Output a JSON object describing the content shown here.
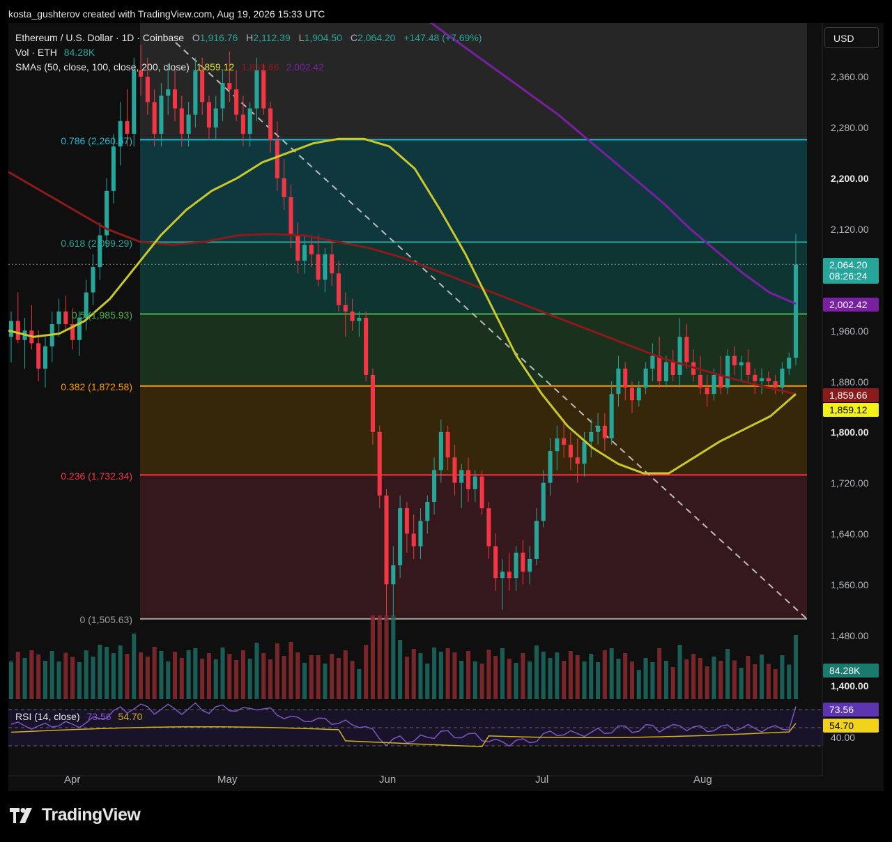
{
  "attribution": "kosta_gushterov created with TradingView.com, Aug 19, 2026 15:33 UTC",
  "brand": "TradingView",
  "currency_button": "USD",
  "legend": {
    "symbol": "Ethereum / U.S. Dollar · 1D · Coinbase",
    "o_label": "O",
    "o_value": "1,916.76",
    "h_label": "H",
    "h_value": "2,112.39",
    "l_label": "L",
    "l_value": "1,904.50",
    "c_label": "C",
    "c_value": "2,064.20",
    "change": "+147.48 (+7.69%)",
    "vol_label": "Vol · ETH",
    "vol_value": "84.28K",
    "sma_label": "SMAs (50, close, 100, close, 200, close)",
    "sma50_value": "1,859.12",
    "sma100_value": "1,859.66",
    "sma200_value": "2,002.42"
  },
  "badges": {
    "last_price": "2,064.20",
    "countdown": "08:26:24",
    "sma200": "2,002.42",
    "sma100": "1,859.66",
    "sma50": "1,859.12",
    "volume": "84.28K",
    "rsi": "73.56",
    "rsi_ma": "54.70"
  },
  "rsi_legend": {
    "label": "RSI (14, close)",
    "rsi": "73.56",
    "ma": "54.70",
    "level": "40.00"
  },
  "price_axis_labels": [
    "2,360.00",
    "2,280.00",
    "2,200.00",
    "2,120.00",
    "1,960.00",
    "1,880.00",
    "1,800.00",
    "1,720.00",
    "1,640.00",
    "1,560.00",
    "1,480.00",
    "1,400.00"
  ],
  "month_labels": [
    "Apr",
    "May",
    "Jun",
    "Jul",
    "Aug"
  ],
  "colors": {
    "up": "#26a69a",
    "down": "#f23645",
    "sma50": "#c9c92a",
    "sma100": "#8b1a1a",
    "sma200": "#7b1fa2",
    "rsi": "#7e57c2",
    "rsi_ma": "#d4b21b"
  },
  "chart_data": {
    "type": "candlestick",
    "symbol": "ETHUSD",
    "timeframe": "1D",
    "price_range": [
      1400,
      2400
    ],
    "fib_levels": [
      {
        "ratio": "0.786",
        "price": 2260.67,
        "label": "0.786 (2,260.67)",
        "color": "#22b8cf"
      },
      {
        "ratio": "0.618",
        "price": 2099.29,
        "label": "0.618 (2,099.29)",
        "color": "#26a69a"
      },
      {
        "ratio": "0.5",
        "price": 1985.93,
        "label": "0.5 (1,985.93)",
        "color": "#4caf50"
      },
      {
        "ratio": "0.382",
        "price": 1872.58,
        "label": "0.382 (1,872.58)",
        "color": "#ff9800"
      },
      {
        "ratio": "0.236",
        "price": 1732.34,
        "label": "0.236 (1,732.34)",
        "color": "#f23645"
      },
      {
        "ratio": "0",
        "price": 1505.63,
        "label": "0 (1,505.63)",
        "color": "#9e9e9e"
      }
    ],
    "candles": [
      {
        "o": 1950,
        "h": 1990,
        "l": 1910,
        "c": 1975
      },
      {
        "o": 1975,
        "h": 2020,
        "l": 1940,
        "c": 1945
      },
      {
        "o": 1945,
        "h": 1980,
        "l": 1900,
        "c": 1960
      },
      {
        "o": 1960,
        "h": 2000,
        "l": 1930,
        "c": 1940
      },
      {
        "o": 1940,
        "h": 1960,
        "l": 1880,
        "c": 1900
      },
      {
        "o": 1900,
        "h": 1950,
        "l": 1870,
        "c": 1935
      },
      {
        "o": 1935,
        "h": 1990,
        "l": 1910,
        "c": 1970
      },
      {
        "o": 1970,
        "h": 2010,
        "l": 1950,
        "c": 1990
      },
      {
        "o": 1990,
        "h": 2015,
        "l": 1960,
        "c": 1970
      },
      {
        "o": 1970,
        "h": 1995,
        "l": 1930,
        "c": 1945
      },
      {
        "o": 1945,
        "h": 1990,
        "l": 1920,
        "c": 1980
      },
      {
        "o": 1980,
        "h": 2040,
        "l": 1960,
        "c": 2020
      },
      {
        "o": 2020,
        "h": 2080,
        "l": 2000,
        "c": 2060
      },
      {
        "o": 2060,
        "h": 2130,
        "l": 2040,
        "c": 2110
      },
      {
        "o": 2110,
        "h": 2200,
        "l": 2090,
        "c": 2180
      },
      {
        "o": 2180,
        "h": 2270,
        "l": 2160,
        "c": 2250
      },
      {
        "o": 2250,
        "h": 2320,
        "l": 2220,
        "c": 2290
      },
      {
        "o": 2290,
        "h": 2340,
        "l": 2250,
        "c": 2270
      },
      {
        "o": 2270,
        "h": 2390,
        "l": 2250,
        "c": 2370
      },
      {
        "o": 2370,
        "h": 2410,
        "l": 2330,
        "c": 2360
      },
      {
        "o": 2360,
        "h": 2390,
        "l": 2300,
        "c": 2320
      },
      {
        "o": 2320,
        "h": 2340,
        "l": 2250,
        "c": 2270
      },
      {
        "o": 2270,
        "h": 2350,
        "l": 2250,
        "c": 2330
      },
      {
        "o": 2330,
        "h": 2380,
        "l": 2300,
        "c": 2340
      },
      {
        "o": 2340,
        "h": 2370,
        "l": 2290,
        "c": 2310
      },
      {
        "o": 2310,
        "h": 2330,
        "l": 2250,
        "c": 2270
      },
      {
        "o": 2270,
        "h": 2320,
        "l": 2250,
        "c": 2300
      },
      {
        "o": 2300,
        "h": 2390,
        "l": 2280,
        "c": 2370
      },
      {
        "o": 2370,
        "h": 2390,
        "l": 2300,
        "c": 2320
      },
      {
        "o": 2320,
        "h": 2330,
        "l": 2260,
        "c": 2280
      },
      {
        "o": 2280,
        "h": 2330,
        "l": 2260,
        "c": 2310
      },
      {
        "o": 2310,
        "h": 2370,
        "l": 2290,
        "c": 2350
      },
      {
        "o": 2350,
        "h": 2400,
        "l": 2320,
        "c": 2340
      },
      {
        "o": 2340,
        "h": 2370,
        "l": 2290,
        "c": 2300
      },
      {
        "o": 2300,
        "h": 2330,
        "l": 2250,
        "c": 2270
      },
      {
        "o": 2270,
        "h": 2320,
        "l": 2250,
        "c": 2310
      },
      {
        "o": 2310,
        "h": 2390,
        "l": 2290,
        "c": 2370
      },
      {
        "o": 2370,
        "h": 2380,
        "l": 2300,
        "c": 2310
      },
      {
        "o": 2310,
        "h": 2320,
        "l": 2240,
        "c": 2260
      },
      {
        "o": 2260,
        "h": 2290,
        "l": 2180,
        "c": 2200
      },
      {
        "o": 2200,
        "h": 2230,
        "l": 2150,
        "c": 2170
      },
      {
        "o": 2170,
        "h": 2190,
        "l": 2090,
        "c": 2110
      },
      {
        "o": 2110,
        "h": 2130,
        "l": 2050,
        "c": 2070
      },
      {
        "o": 2070,
        "h": 2110,
        "l": 2050,
        "c": 2095
      },
      {
        "o": 2095,
        "h": 2110,
        "l": 2060,
        "c": 2080
      },
      {
        "o": 2080,
        "h": 2110,
        "l": 2030,
        "c": 2040
      },
      {
        "o": 2040,
        "h": 2090,
        "l": 2020,
        "c": 2080
      },
      {
        "o": 2080,
        "h": 2100,
        "l": 2030,
        "c": 2050
      },
      {
        "o": 2050,
        "h": 2070,
        "l": 1990,
        "c": 2000
      },
      {
        "o": 2000,
        "h": 2020,
        "l": 1950,
        "c": 1990
      },
      {
        "o": 1990,
        "h": 2010,
        "l": 1960,
        "c": 1975
      },
      {
        "o": 1975,
        "h": 1990,
        "l": 1950,
        "c": 1980
      },
      {
        "o": 1980,
        "h": 1990,
        "l": 1880,
        "c": 1890
      },
      {
        "o": 1890,
        "h": 1900,
        "l": 1780,
        "c": 1800
      },
      {
        "o": 1800,
        "h": 1810,
        "l": 1680,
        "c": 1700
      },
      {
        "o": 1700,
        "h": 1710,
        "l": 1510,
        "c": 1560
      },
      {
        "o": 1560,
        "h": 1620,
        "l": 1510,
        "c": 1590
      },
      {
        "o": 1590,
        "h": 1700,
        "l": 1570,
        "c": 1680
      },
      {
        "o": 1680,
        "h": 1690,
        "l": 1610,
        "c": 1640
      },
      {
        "o": 1640,
        "h": 1670,
        "l": 1600,
        "c": 1620
      },
      {
        "o": 1620,
        "h": 1680,
        "l": 1600,
        "c": 1660
      },
      {
        "o": 1660,
        "h": 1700,
        "l": 1640,
        "c": 1690
      },
      {
        "o": 1690,
        "h": 1760,
        "l": 1670,
        "c": 1740
      },
      {
        "o": 1740,
        "h": 1820,
        "l": 1720,
        "c": 1800
      },
      {
        "o": 1800,
        "h": 1810,
        "l": 1740,
        "c": 1760
      },
      {
        "o": 1760,
        "h": 1780,
        "l": 1700,
        "c": 1720
      },
      {
        "o": 1720,
        "h": 1750,
        "l": 1680,
        "c": 1740
      },
      {
        "o": 1740,
        "h": 1760,
        "l": 1690,
        "c": 1710
      },
      {
        "o": 1710,
        "h": 1740,
        "l": 1690,
        "c": 1730
      },
      {
        "o": 1730,
        "h": 1740,
        "l": 1670,
        "c": 1680
      },
      {
        "o": 1680,
        "h": 1690,
        "l": 1600,
        "c": 1620
      },
      {
        "o": 1620,
        "h": 1640,
        "l": 1550,
        "c": 1570
      },
      {
        "o": 1570,
        "h": 1600,
        "l": 1520,
        "c": 1580
      },
      {
        "o": 1580,
        "h": 1610,
        "l": 1550,
        "c": 1570
      },
      {
        "o": 1570,
        "h": 1620,
        "l": 1550,
        "c": 1610
      },
      {
        "o": 1610,
        "h": 1630,
        "l": 1560,
        "c": 1580
      },
      {
        "o": 1580,
        "h": 1620,
        "l": 1560,
        "c": 1600
      },
      {
        "o": 1600,
        "h": 1680,
        "l": 1590,
        "c": 1660
      },
      {
        "o": 1660,
        "h": 1740,
        "l": 1650,
        "c": 1720
      },
      {
        "o": 1720,
        "h": 1790,
        "l": 1700,
        "c": 1770
      },
      {
        "o": 1770,
        "h": 1810,
        "l": 1740,
        "c": 1790
      },
      {
        "o": 1790,
        "h": 1820,
        "l": 1760,
        "c": 1780
      },
      {
        "o": 1780,
        "h": 1800,
        "l": 1740,
        "c": 1760
      },
      {
        "o": 1760,
        "h": 1790,
        "l": 1720,
        "c": 1750
      },
      {
        "o": 1750,
        "h": 1800,
        "l": 1730,
        "c": 1785
      },
      {
        "o": 1785,
        "h": 1820,
        "l": 1760,
        "c": 1800
      },
      {
        "o": 1800,
        "h": 1830,
        "l": 1780,
        "c": 1810
      },
      {
        "o": 1810,
        "h": 1830,
        "l": 1770,
        "c": 1790
      },
      {
        "o": 1790,
        "h": 1880,
        "l": 1780,
        "c": 1860
      },
      {
        "o": 1860,
        "h": 1920,
        "l": 1840,
        "c": 1900
      },
      {
        "o": 1900,
        "h": 1910,
        "l": 1850,
        "c": 1870
      },
      {
        "o": 1870,
        "h": 1880,
        "l": 1830,
        "c": 1850
      },
      {
        "o": 1850,
        "h": 1880,
        "l": 1840,
        "c": 1870
      },
      {
        "o": 1870,
        "h": 1910,
        "l": 1860,
        "c": 1900
      },
      {
        "o": 1900,
        "h": 1940,
        "l": 1880,
        "c": 1920
      },
      {
        "o": 1920,
        "h": 1950,
        "l": 1870,
        "c": 1880
      },
      {
        "o": 1880,
        "h": 1920,
        "l": 1870,
        "c": 1910
      },
      {
        "o": 1910,
        "h": 1930,
        "l": 1880,
        "c": 1890
      },
      {
        "o": 1890,
        "h": 1980,
        "l": 1870,
        "c": 1950
      },
      {
        "o": 1950,
        "h": 1970,
        "l": 1900,
        "c": 1910
      },
      {
        "o": 1910,
        "h": 1930,
        "l": 1880,
        "c": 1890
      },
      {
        "o": 1890,
        "h": 1920,
        "l": 1860,
        "c": 1870
      },
      {
        "o": 1870,
        "h": 1890,
        "l": 1840,
        "c": 1860
      },
      {
        "o": 1860,
        "h": 1900,
        "l": 1850,
        "c": 1890
      },
      {
        "o": 1890,
        "h": 1920,
        "l": 1860,
        "c": 1870
      },
      {
        "o": 1870,
        "h": 1930,
        "l": 1860,
        "c": 1920
      },
      {
        "o": 1920,
        "h": 1935,
        "l": 1890,
        "c": 1905
      },
      {
        "o": 1905,
        "h": 1920,
        "l": 1880,
        "c": 1910
      },
      {
        "o": 1910,
        "h": 1930,
        "l": 1880,
        "c": 1890
      },
      {
        "o": 1890,
        "h": 1900,
        "l": 1860,
        "c": 1880
      },
      {
        "o": 1880,
        "h": 1900,
        "l": 1860,
        "c": 1885
      },
      {
        "o": 1885,
        "h": 1895,
        "l": 1870,
        "c": 1880
      },
      {
        "o": 1880,
        "h": 1890,
        "l": 1860,
        "c": 1870
      },
      {
        "o": 1870,
        "h": 1910,
        "l": 1860,
        "c": 1900
      },
      {
        "o": 1900,
        "h": 1925,
        "l": 1890,
        "c": 1917
      },
      {
        "o": 1917,
        "h": 2112,
        "l": 1905,
        "c": 2064
      }
    ],
    "volume_note": "volume bars beneath price, last bar 84.28K ETH",
    "sma50_points": [
      1960,
      1950,
      1955,
      1975,
      2010,
      2060,
      2110,
      2150,
      2180,
      2200,
      2225,
      2240,
      2255,
      2262,
      2262,
      2250,
      2215,
      2150,
      2080,
      2000,
      1920,
      1860,
      1810,
      1775,
      1750,
      1735,
      1735,
      1760,
      1785,
      1805,
      1825,
      1860
    ],
    "sma100_points": [
      2210,
      2180,
      2150,
      2120,
      2100,
      2095,
      2100,
      2110,
      2112,
      2110,
      2100,
      2090,
      2075,
      2055,
      2035,
      2015,
      1995,
      1975,
      1955,
      1935,
      1915,
      1900,
      1885,
      1872,
      1860
    ],
    "sma200_points": [
      2450,
      2420,
      2390,
      2360,
      2330,
      2300,
      2265,
      2230,
      2195,
      2160,
      2120,
      2085,
      2050,
      2020,
      2002
    ],
    "rsi": {
      "last": 73.56,
      "ma": 54.7,
      "levels": [
        70,
        50,
        30
      ]
    }
  }
}
